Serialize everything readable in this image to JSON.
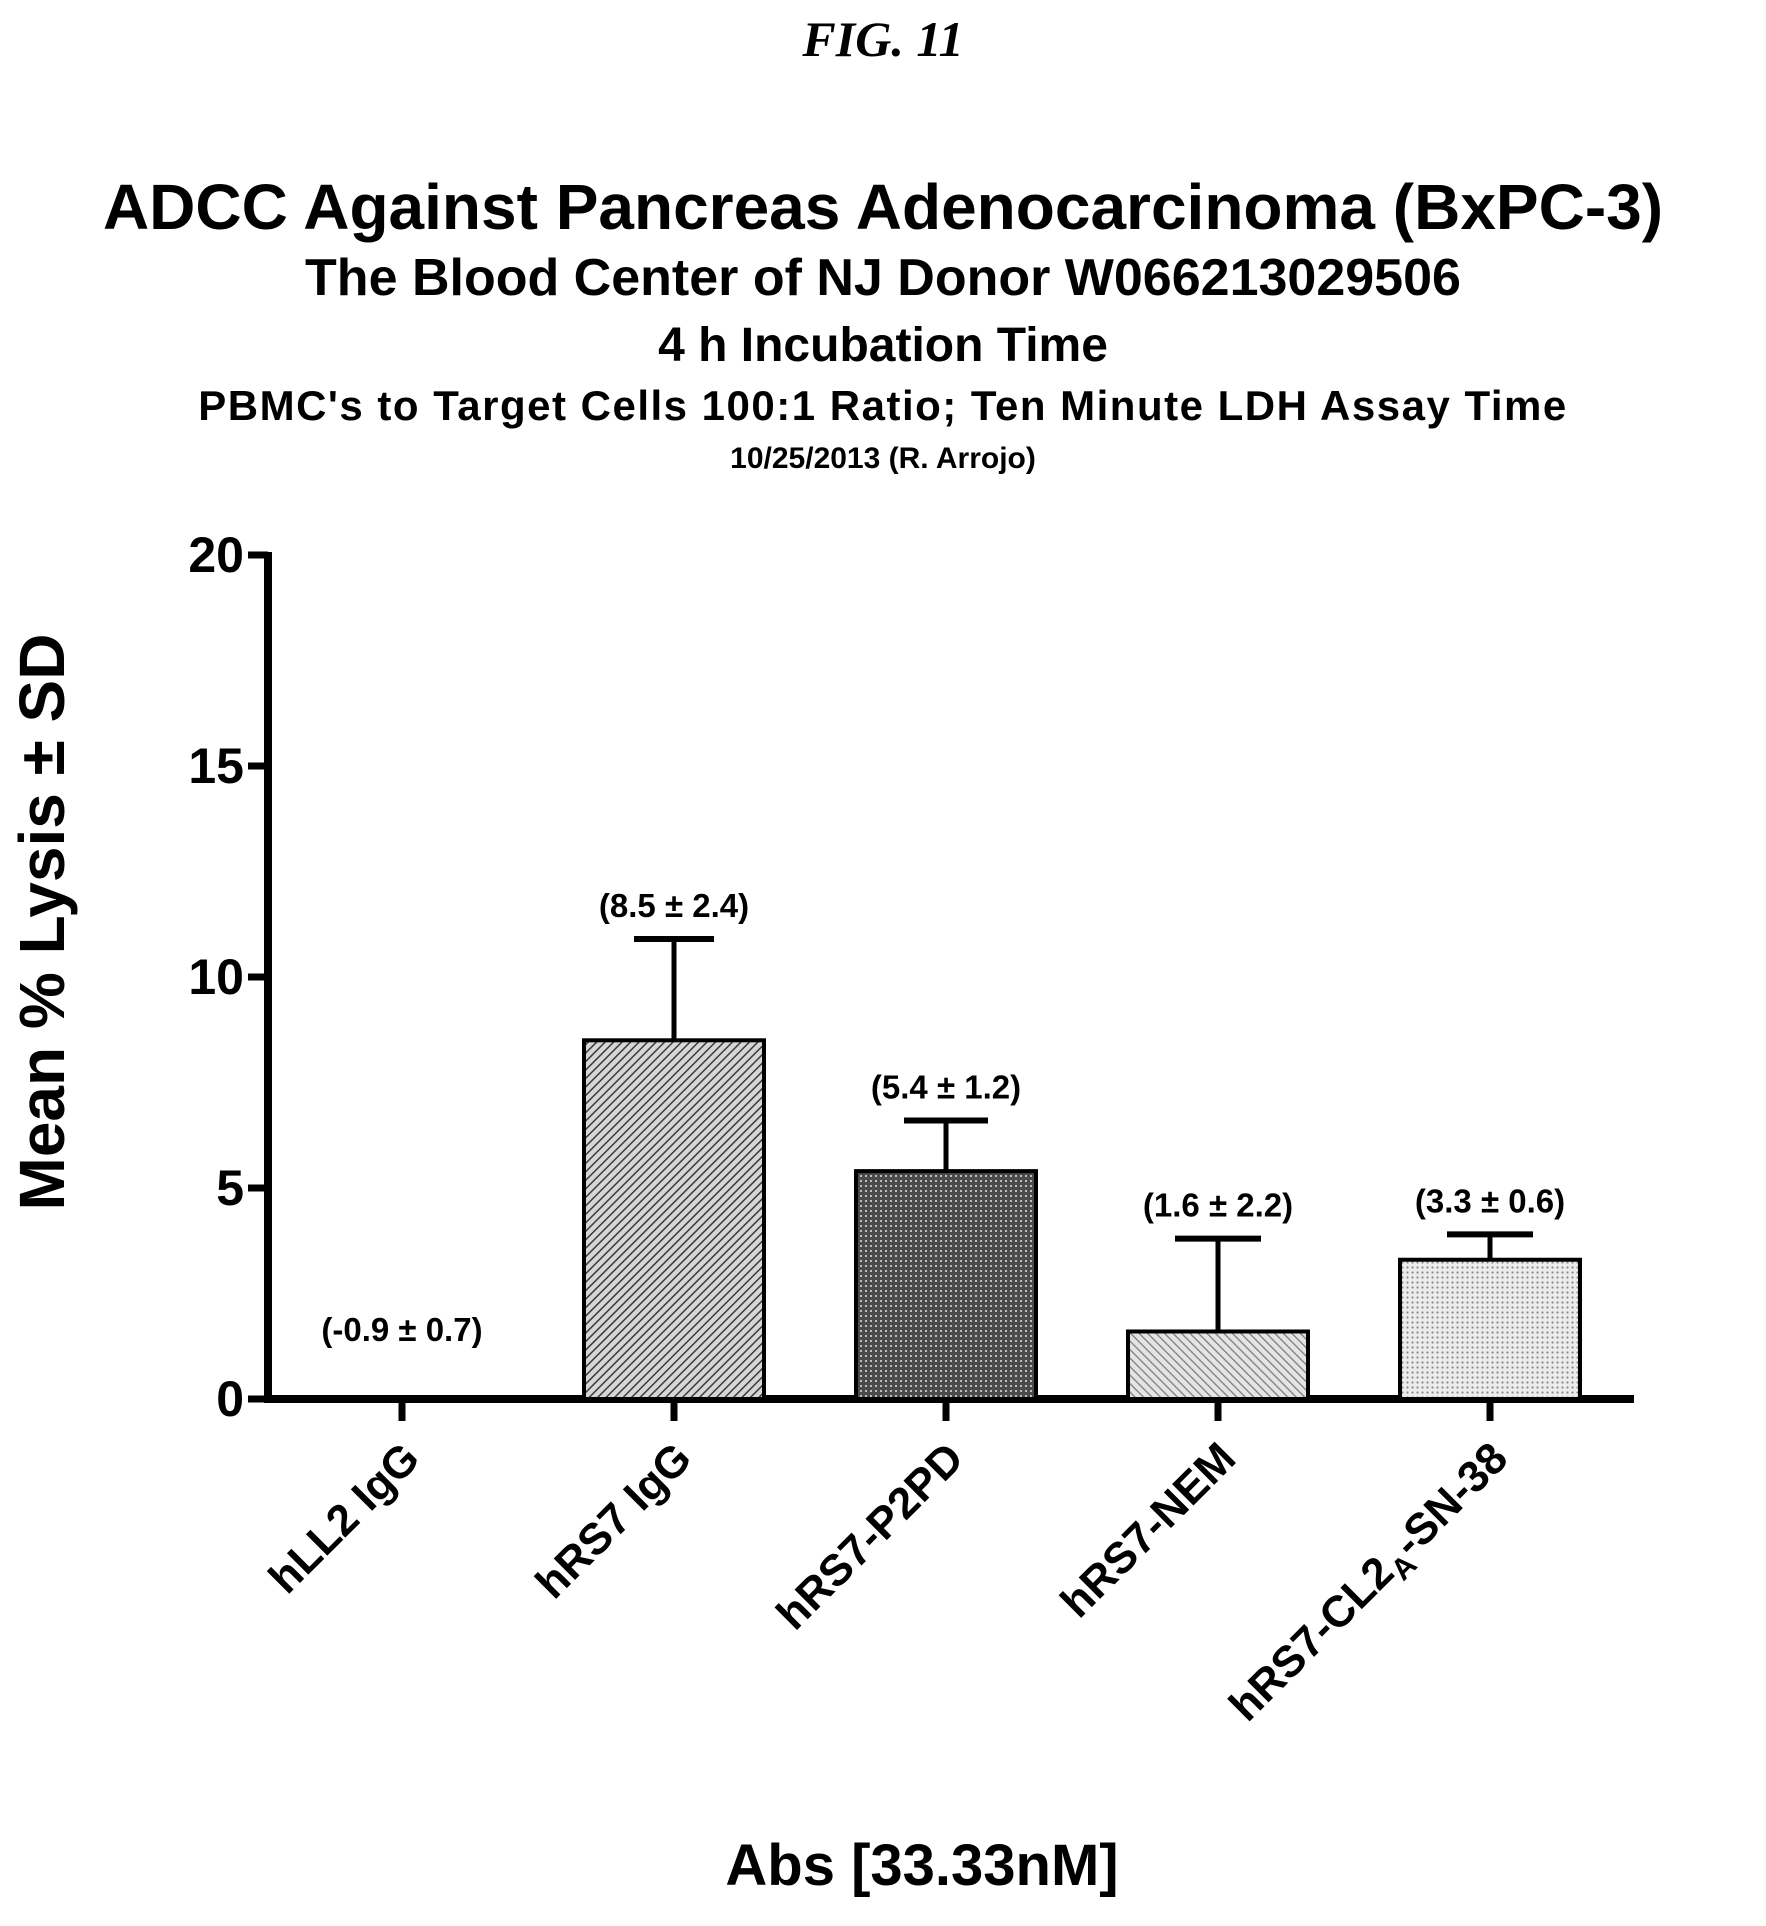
{
  "figure_label": "FIG. 11",
  "chart_data": {
    "type": "bar",
    "title": "ADCC Against Pancreas Adenocarcinoma (BxPC-3)",
    "subtitles": [
      "The Blood Center of NJ Donor W066213029506",
      "4 h Incubation Time",
      "PBMC's to Target Cells  100:1 Ratio; Ten Minute LDH Assay Time",
      "10/25/2013 (R. Arrojo)"
    ],
    "xlabel": "Abs [33.33nM]",
    "ylabel": "Mean % Lysis ± SD",
    "ylim": [
      0,
      20
    ],
    "yticks": [
      0,
      5,
      10,
      15,
      20
    ],
    "grid": false,
    "categories": [
      {
        "label": "hLL2 IgG",
        "subscript": "",
        "suffix": ""
      },
      {
        "label": "hRS7 IgG",
        "subscript": "",
        "suffix": ""
      },
      {
        "label": "hRS7-P2PD",
        "subscript": "",
        "suffix": ""
      },
      {
        "label": "hRS7-NEM",
        "subscript": "",
        "suffix": ""
      },
      {
        "label": "hRS7-CL2",
        "subscript": "A",
        "suffix": "-SN-38"
      }
    ],
    "values": [
      -0.9,
      8.5,
      5.4,
      1.6,
      3.3
    ],
    "errors": [
      0.7,
      2.4,
      1.2,
      2.2,
      0.6
    ],
    "annotations": [
      "(-0.9 ± 0.7)",
      "(8.5 ± 2.4)",
      "(5.4 ± 1.2)",
      "(1.6 ± 2.2)",
      "(3.3 ± 0.6)"
    ],
    "patterns": [
      "none",
      "diag-medium",
      "cross-dark",
      "diag-light",
      "dots-light"
    ]
  }
}
